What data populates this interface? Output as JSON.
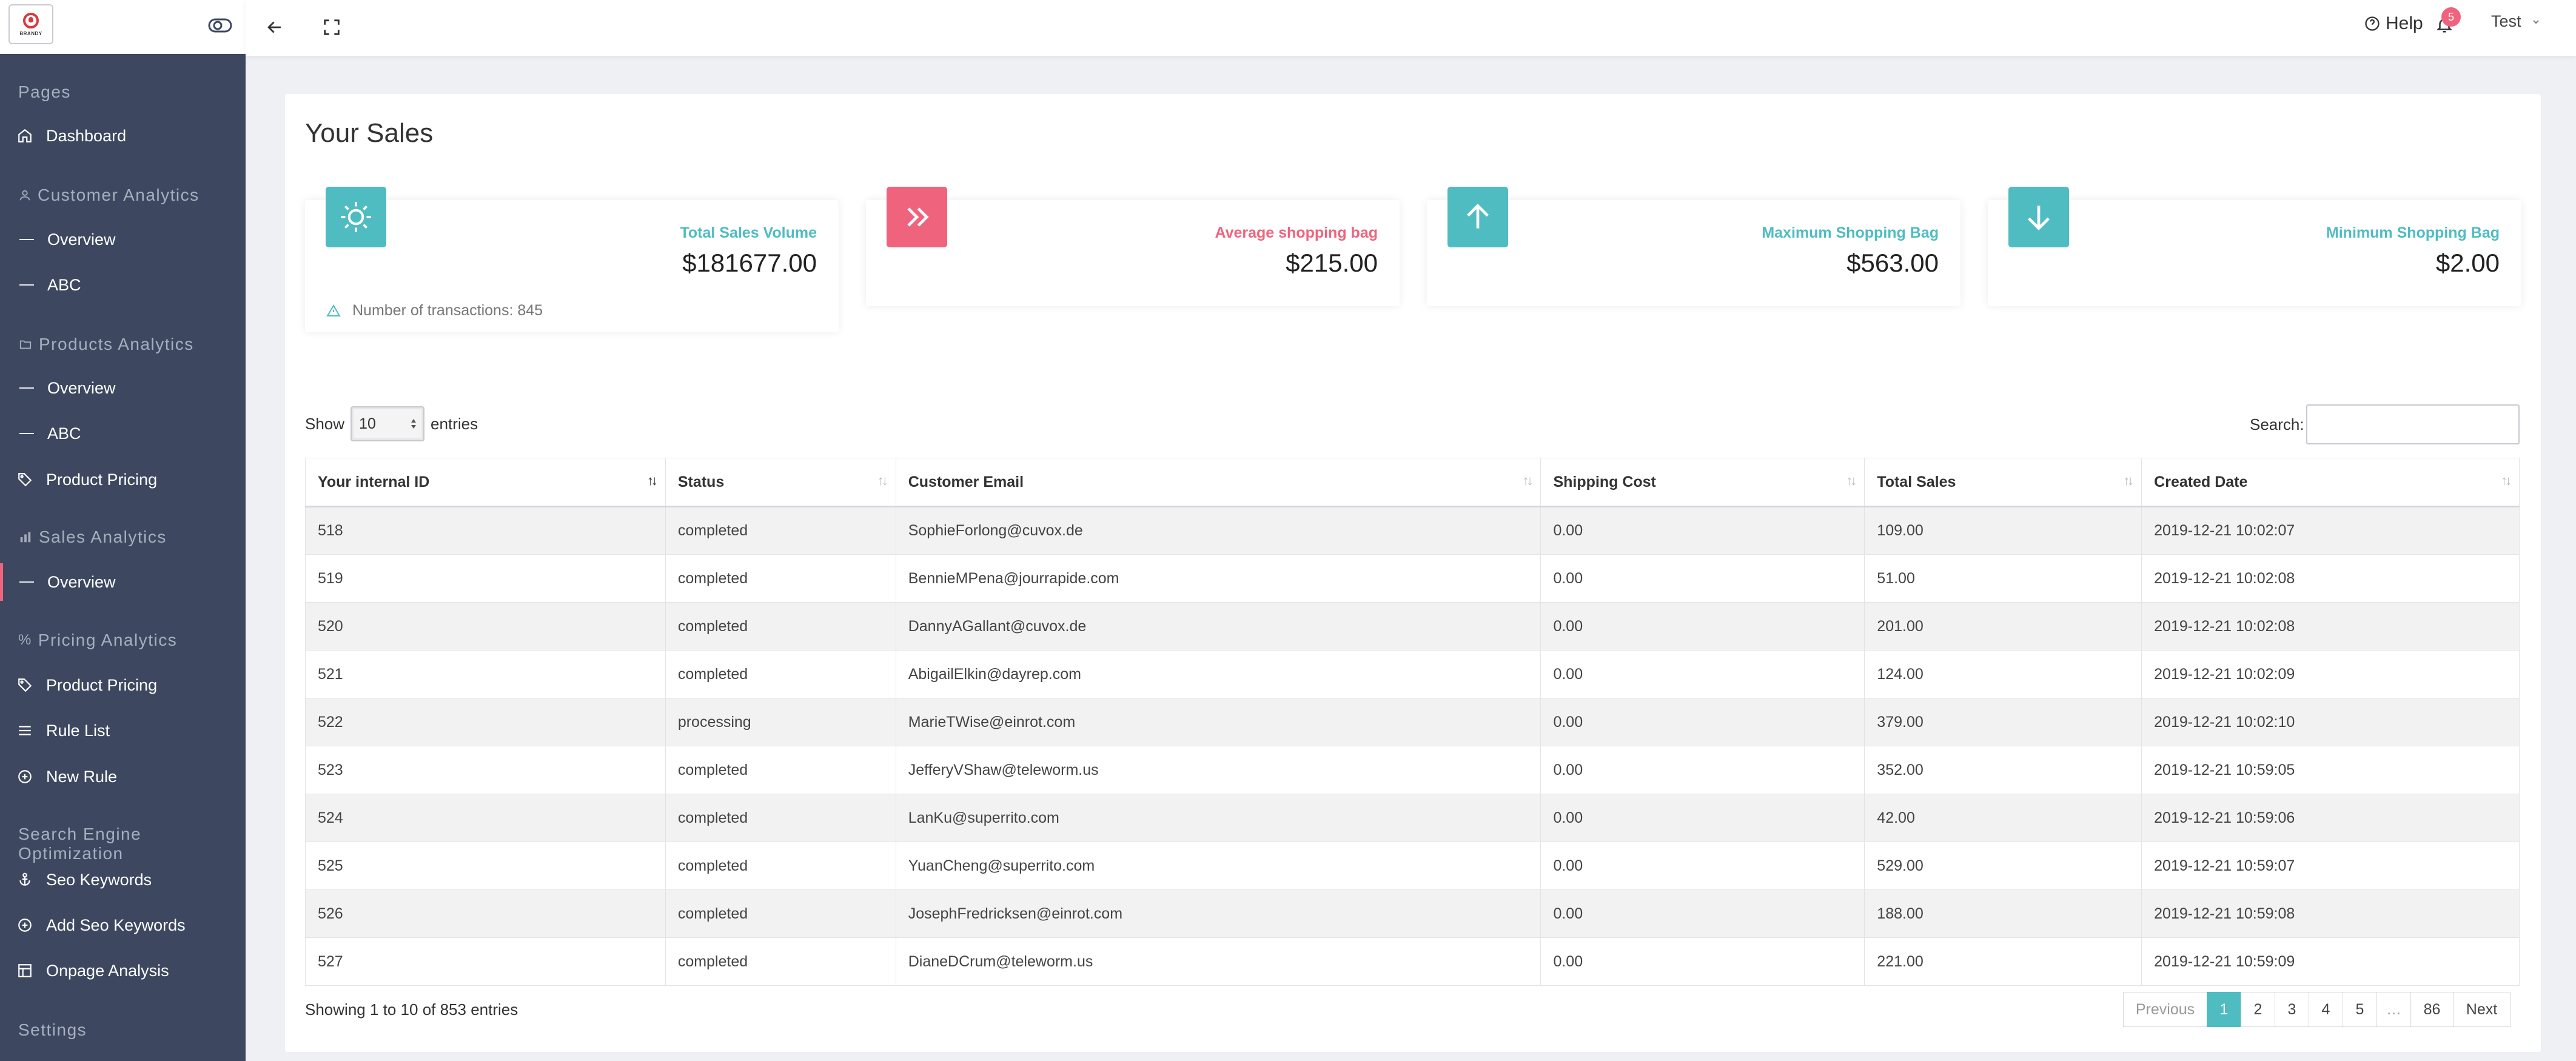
{
  "brand": {
    "logo_text": "BRANDY"
  },
  "sidebar": {
    "sections": [
      {
        "label": "Pages"
      },
      {
        "label": "Customer Analytics"
      },
      {
        "label": "Products Analytics"
      },
      {
        "label": "Sales Analytics"
      },
      {
        "label": "Pricing Analytics"
      },
      {
        "label": "Search Engine Optimization"
      },
      {
        "label": "Settings"
      }
    ],
    "items": [
      {
        "label": "Dashboard",
        "icon": "home-icon"
      },
      {
        "label": "Overview",
        "icon": "dash"
      },
      {
        "label": "ABC",
        "icon": "dash"
      },
      {
        "label": "Overview",
        "icon": "dash"
      },
      {
        "label": "ABC",
        "icon": "dash"
      },
      {
        "label": "Product Pricing",
        "icon": "tag-icon"
      },
      {
        "label": "Overview",
        "icon": "dash",
        "active": true
      },
      {
        "label": "Product Pricing",
        "icon": "tag-icon"
      },
      {
        "label": "Rule List",
        "icon": "list-icon"
      },
      {
        "label": "New Rule",
        "icon": "plus-circle-icon"
      },
      {
        "label": "Seo Keywords",
        "icon": "anchor-icon"
      },
      {
        "label": "Add Seo Keywords",
        "icon": "plus-circle-icon"
      },
      {
        "label": "Onpage Analysis",
        "icon": "layout-icon"
      }
    ]
  },
  "topbar": {
    "help_label": "Help",
    "notification_count": "5",
    "user_name": "Test"
  },
  "page": {
    "title": "Your Sales"
  },
  "stats": [
    {
      "label": "Total Sales Volume",
      "value": "$181677.00",
      "footer": "Number of transactions: 845",
      "color": "#4fbcc2",
      "icon": "sun-icon"
    },
    {
      "label": "Average shopping bag",
      "value": "$215.00",
      "color": "#f0637d",
      "icon": "chevrons-right-icon"
    },
    {
      "label": "Maximum Shopping Bag",
      "value": "$563.00",
      "color": "#4fbcc2",
      "icon": "arrow-up-icon"
    },
    {
      "label": "Minimum Shopping Bag",
      "value": "$2.00",
      "color": "#4fbcc2",
      "icon": "arrow-down-icon"
    }
  ],
  "table_controls": {
    "show_label": "Show",
    "entries_value": "10",
    "entries_label": "entries",
    "search_label": "Search:",
    "search_value": ""
  },
  "table": {
    "columns": [
      "Your internal ID",
      "Status",
      "Customer Email",
      "Shipping Cost",
      "Total Sales",
      "Created Date"
    ],
    "rows": [
      [
        "518",
        "completed",
        "SophieForlong@cuvox.de",
        "0.00",
        "109.00",
        "2019-12-21 10:02:07"
      ],
      [
        "519",
        "completed",
        "BennieMPena@jourrapide.com",
        "0.00",
        "51.00",
        "2019-12-21 10:02:08"
      ],
      [
        "520",
        "completed",
        "DannyAGallant@cuvox.de",
        "0.00",
        "201.00",
        "2019-12-21 10:02:08"
      ],
      [
        "521",
        "completed",
        "AbigailElkin@dayrep.com",
        "0.00",
        "124.00",
        "2019-12-21 10:02:09"
      ],
      [
        "522",
        "processing",
        "MarieTWise@einrot.com",
        "0.00",
        "379.00",
        "2019-12-21 10:02:10"
      ],
      [
        "523",
        "completed",
        "JefferyVShaw@teleworm.us",
        "0.00",
        "352.00",
        "2019-12-21 10:59:05"
      ],
      [
        "524",
        "completed",
        "LanKu@superrito.com",
        "0.00",
        "42.00",
        "2019-12-21 10:59:06"
      ],
      [
        "525",
        "completed",
        "YuanCheng@superrito.com",
        "0.00",
        "529.00",
        "2019-12-21 10:59:07"
      ],
      [
        "526",
        "completed",
        "JosephFredricksen@einrot.com",
        "0.00",
        "188.00",
        "2019-12-21 10:59:08"
      ],
      [
        "527",
        "completed",
        "DianeDCrum@teleworm.us",
        "0.00",
        "221.00",
        "2019-12-21 10:59:09"
      ]
    ],
    "info": "Showing 1 to 10 of 853 entries"
  },
  "pagination": {
    "previous": "Previous",
    "pages": [
      "1",
      "2",
      "3",
      "4",
      "5",
      "…",
      "86"
    ],
    "current": "1",
    "next": "Next"
  }
}
